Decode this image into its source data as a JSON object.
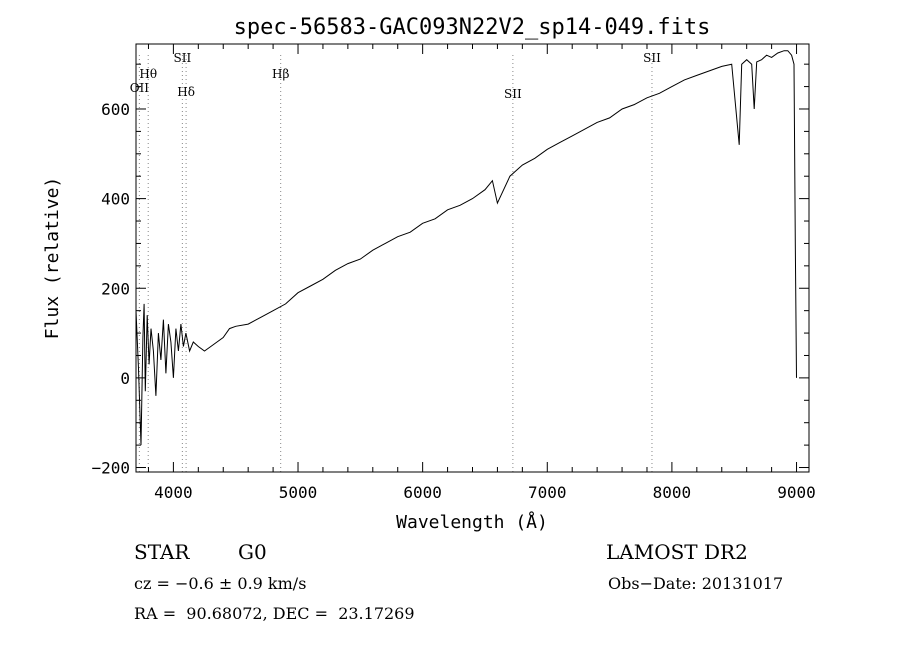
{
  "chart_data": {
    "type": "line",
    "title": "spec-56583-GAC093N22V2_sp14-049.fits",
    "xlabel": "Wavelength (Å)",
    "ylabel": "Flux (relative)",
    "xlim": [
      3700,
      9100
    ],
    "ylim": [
      -210,
      745
    ],
    "xticks": [
      4000,
      5000,
      6000,
      7000,
      8000,
      9000
    ],
    "yticks": [
      -200,
      0,
      200,
      400,
      600
    ],
    "line_color": "#000000",
    "marker_color": "#888888",
    "line_markers": [
      {
        "label": "OII",
        "x": 3727
      },
      {
        "label": "Hθ",
        "x": 3798
      },
      {
        "label": "SII",
        "x": 4072
      },
      {
        "label": "Hδ",
        "x": 4102
      },
      {
        "label": "Hβ",
        "x": 4861
      },
      {
        "label": "SII",
        "x": 6724
      },
      {
        "label": "SII",
        "x": 7840
      }
    ],
    "series": [
      {
        "x": [
          3700,
          3720,
          3740,
          3755,
          3765,
          3775,
          3790,
          3805,
          3820,
          3840,
          3860,
          3880,
          3900,
          3920,
          3940,
          3960,
          3980,
          4000,
          4020,
          4040,
          4060,
          4080,
          4100,
          4130,
          4160,
          4200,
          4250,
          4300,
          4350,
          4400,
          4450,
          4500,
          4600,
          4700,
          4800,
          4900,
          5000,
          5100,
          5200,
          5300,
          5400,
          5500,
          5600,
          5700,
          5800,
          5900,
          6000,
          6100,
          6200,
          6300,
          6400,
          6500,
          6560,
          6600,
          6700,
          6800,
          6900,
          7000,
          7100,
          7200,
          7300,
          7400,
          7500,
          7600,
          7700,
          7800,
          7900,
          8000,
          8100,
          8200,
          8300,
          8400,
          8480,
          8500,
          8520,
          8540,
          8560,
          8600,
          8640,
          8660,
          8680,
          8720,
          8760,
          8800,
          8850,
          8900,
          8930,
          8960,
          8980,
          8990,
          9000
        ],
        "values": [
          150,
          20,
          -150,
          90,
          165,
          -30,
          140,
          30,
          110,
          60,
          -40,
          100,
          40,
          130,
          10,
          120,
          80,
          0,
          110,
          60,
          120,
          70,
          100,
          60,
          80,
          70,
          60,
          70,
          80,
          90,
          110,
          115,
          120,
          135,
          150,
          165,
          190,
          205,
          220,
          240,
          255,
          265,
          285,
          300,
          315,
          325,
          345,
          355,
          375,
          385,
          400,
          420,
          440,
          390,
          450,
          475,
          490,
          510,
          525,
          540,
          555,
          570,
          580,
          600,
          610,
          625,
          635,
          650,
          665,
          675,
          685,
          695,
          700,
          640,
          580,
          520,
          700,
          710,
          700,
          600,
          705,
          710,
          720,
          715,
          725,
          730,
          730,
          720,
          700,
          300,
          0
        ]
      }
    ]
  },
  "footer": {
    "object_class": "STAR",
    "subclass": "G0",
    "survey": "LAMOST DR2",
    "cz": "cz = −0.6 ± 0.9 km/s",
    "obs_date": "Obs−Date: 20131017",
    "coords": "RA =  90.68072, DEC =  23.17269"
  }
}
